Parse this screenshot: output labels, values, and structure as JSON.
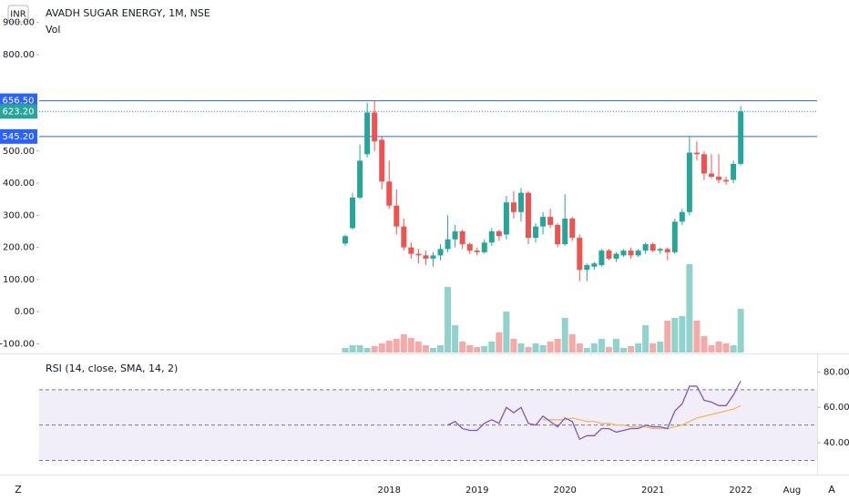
{
  "chart_data": {
    "type": "candlestick",
    "title": "AVADH SUGAR ENERGY, 1M, NSE",
    "currency": "INR",
    "volume_label": "Vol",
    "indicator_label": "RSI (14, close, SMA, 14, 2)",
    "up_color": "#26a69a",
    "down_color": "#ef5350",
    "time_labels": [
      "2018",
      "2019",
      "2020",
      "2021",
      "2022",
      "Aug"
    ],
    "corner_labels": [
      "Z",
      "A"
    ],
    "ylim": [
      -130,
      970
    ],
    "yticks": [
      {
        "value": -100,
        "label": "-100.00"
      },
      {
        "value": 0,
        "label": "0.00"
      },
      {
        "value": 100,
        "label": "100.00"
      },
      {
        "value": 200,
        "label": "200.00"
      },
      {
        "value": 300,
        "label": "300.00"
      },
      {
        "value": 400,
        "label": "400.00"
      },
      {
        "value": 500,
        "label": "500.00"
      },
      {
        "value": 800,
        "label": "800.00"
      },
      {
        "value": 900,
        "label": "900.00"
      }
    ],
    "price_lines": [
      {
        "value": 656.5,
        "label": "656.50",
        "color": "#2962ff"
      },
      {
        "value": 545.2,
        "label": "545.20",
        "color": "#2962ff"
      },
      {
        "value": 623.2,
        "label": "623.20",
        "color": "#26a69a"
      }
    ],
    "open": [
      212,
      260,
      355,
      490,
      620,
      535,
      405,
      330,
      265,
      200,
      180,
      175,
      165,
      175,
      195,
      225,
      250,
      210,
      190,
      185,
      215,
      250,
      240,
      340,
      310,
      370,
      230,
      265,
      295,
      270,
      210,
      290,
      230,
      130,
      140,
      145,
      190,
      165,
      175,
      190,
      175,
      190,
      210,
      190,
      195,
      185,
      280,
      310,
      495,
      490,
      430,
      420,
      410,
      410,
      460
    ],
    "high": [
      240,
      370,
      520,
      650,
      656.5,
      545,
      470,
      380,
      290,
      215,
      195,
      190,
      185,
      210,
      300,
      270,
      255,
      215,
      200,
      225,
      260,
      255,
      360,
      375,
      385,
      375,
      275,
      310,
      320,
      275,
      365,
      295,
      240,
      150,
      155,
      195,
      195,
      185,
      195,
      200,
      195,
      215,
      215,
      200,
      200,
      290,
      320,
      545,
      530,
      500,
      490,
      490,
      420,
      470,
      640
    ],
    "low": [
      205,
      255,
      350,
      480,
      500,
      380,
      320,
      240,
      190,
      165,
      150,
      145,
      140,
      160,
      185,
      200,
      195,
      180,
      175,
      180,
      205,
      220,
      225,
      290,
      280,
      210,
      215,
      240,
      260,
      200,
      205,
      220,
      95,
      95,
      130,
      140,
      160,
      155,
      170,
      165,
      170,
      180,
      185,
      180,
      160,
      180,
      270,
      300,
      470,
      410,
      415,
      400,
      395,
      400,
      455
    ],
    "close": [
      235,
      355,
      470,
      620,
      530,
      405,
      330,
      265,
      200,
      180,
      175,
      165,
      175,
      195,
      225,
      250,
      210,
      190,
      185,
      215,
      250,
      235,
      340,
      310,
      370,
      230,
      265,
      295,
      270,
      210,
      290,
      230,
      130,
      145,
      150,
      190,
      165,
      180,
      190,
      175,
      190,
      210,
      190,
      195,
      185,
      280,
      310,
      495,
      490,
      430,
      420,
      410,
      405,
      460,
      623.2
    ],
    "volume": [
      5,
      8,
      8,
      5,
      7,
      10,
      13,
      15,
      20,
      16,
      12,
      8,
      5,
      8,
      72,
      30,
      12,
      8,
      6,
      7,
      12,
      22,
      45,
      15,
      10,
      6,
      10,
      8,
      12,
      15,
      38,
      20,
      10,
      5,
      10,
      15,
      6,
      15,
      5,
      7,
      10,
      30,
      10,
      12,
      35,
      38,
      40,
      97,
      35,
      18,
      8,
      12,
      10,
      8,
      48
    ],
    "rsi_lim": [
      22,
      90
    ],
    "rsi_ticks": [
      {
        "value": 40,
        "label": "40.00"
      },
      {
        "value": 60,
        "label": "60.00"
      },
      {
        "value": 80,
        "label": "80.00"
      }
    ],
    "rsi_bands": [
      70,
      50,
      30
    ],
    "rsi": [
      null,
      null,
      null,
      null,
      null,
      null,
      null,
      null,
      null,
      null,
      null,
      null,
      null,
      null,
      50,
      52,
      48,
      47,
      47,
      51,
      53,
      51,
      60,
      57,
      60,
      51,
      50,
      55,
      52,
      49,
      54,
      52,
      42,
      44,
      44,
      48,
      48,
      46,
      47,
      48,
      48,
      50,
      49,
      49,
      48,
      58,
      62,
      72,
      72,
      64,
      63,
      61,
      61,
      67,
      75
    ],
    "rsi_color": "#7e57c2",
    "rsi_sma": [
      null,
      null,
      null,
      null,
      null,
      null,
      null,
      null,
      null,
      null,
      null,
      null,
      null,
      null,
      null,
      null,
      null,
      null,
      null,
      null,
      null,
      null,
      null,
      null,
      null,
      null,
      null,
      53,
      53,
      53,
      53,
      54,
      53,
      52,
      52,
      51,
      51,
      50,
      50,
      49,
      49,
      49,
      48,
      48,
      48,
      49,
      50,
      52,
      54,
      55,
      56,
      57,
      58,
      59,
      61
    ],
    "rsi_sma_color": "#f5b85a"
  }
}
